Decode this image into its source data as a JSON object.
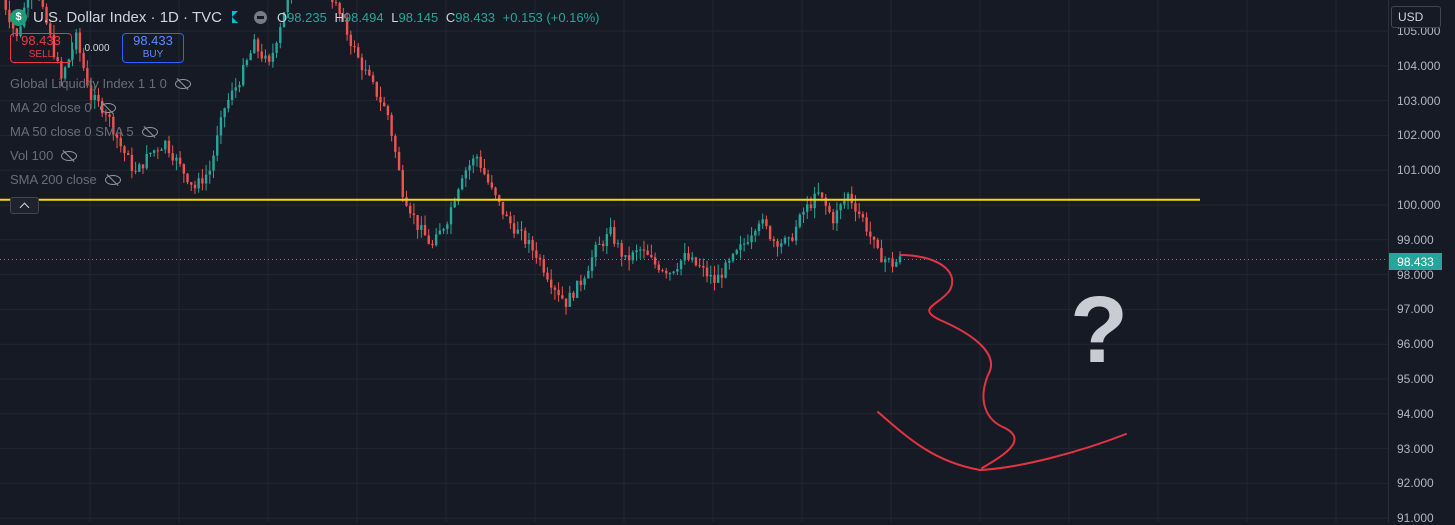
{
  "header": {
    "logo_letter": "$",
    "symbol": "U.S. Dollar Index · 1D · TVC",
    "ohlc": {
      "o_label": "O",
      "o": "98.235",
      "h_label": "H",
      "h": "98.494",
      "l_label": "L",
      "l": "98.145",
      "c_label": "C",
      "c": "98.433",
      "change": "+0.153 (+0.16%)"
    }
  },
  "trade": {
    "sell_price": "98.433",
    "sell_label": "SELL",
    "spread": "0.000",
    "buy_price": "98.433",
    "buy_label": "BUY"
  },
  "indicators": [
    {
      "label": "Global Liquidity Index 1 1 0"
    },
    {
      "label": "MA 20 close 0"
    },
    {
      "label": "MA 50 close 0 SMA 5"
    },
    {
      "label": "Vol 100"
    },
    {
      "label": "SMA 200 close"
    }
  ],
  "price_axis": {
    "currency": "USD",
    "labels": [
      "105.000",
      "104.000",
      "103.000",
      "102.000",
      "101.000",
      "100.000",
      "99.000",
      "98.000",
      "97.000",
      "96.000",
      "95.000",
      "94.000",
      "93.000",
      "92.000",
      "91.000"
    ],
    "last_price": "98.433"
  },
  "annotations": {
    "question_mark": "?",
    "horizontal_line_price": 100.15,
    "line_color": "#f5d90a",
    "drawing_color": "#e23442"
  },
  "colors": {
    "background": "#161a25",
    "up": "#26a69a",
    "down": "#ef5350",
    "grid": "#232632"
  },
  "chart_data": {
    "type": "candlestick",
    "y_range": [
      90.9,
      105.9
    ],
    "path_points": [
      [
        0,
        106.0
      ],
      [
        4,
        104.8
      ],
      [
        8,
        106.5
      ],
      [
        12,
        105.2
      ],
      [
        16,
        103.6
      ],
      [
        20,
        104.8
      ],
      [
        24,
        103.1
      ],
      [
        28,
        102.7
      ],
      [
        32,
        101.7
      ],
      [
        36,
        100.9
      ],
      [
        40,
        101.5
      ],
      [
        44,
        101.8
      ],
      [
        48,
        101.1
      ],
      [
        52,
        100.5
      ],
      [
        56,
        101.0
      ],
      [
        60,
        102.8
      ],
      [
        64,
        103.6
      ],
      [
        68,
        104.6
      ],
      [
        72,
        104.0
      ],
      [
        76,
        105.6
      ],
      [
        80,
        106.5
      ],
      [
        84,
        106.8
      ],
      [
        88,
        106.2
      ],
      [
        92,
        105.2
      ],
      [
        96,
        104.2
      ],
      [
        100,
        103.4
      ],
      [
        104,
        102.6
      ],
      [
        108,
        100.4
      ],
      [
        112,
        99.4
      ],
      [
        116,
        98.8
      ],
      [
        120,
        99.6
      ],
      [
        124,
        100.9
      ],
      [
        128,
        101.4
      ],
      [
        132,
        100.4
      ],
      [
        136,
        99.6
      ],
      [
        140,
        99.1
      ],
      [
        144,
        98.6
      ],
      [
        148,
        97.8
      ],
      [
        152,
        97.2
      ],
      [
        156,
        97.8
      ],
      [
        160,
        98.7
      ],
      [
        164,
        99.2
      ],
      [
        168,
        98.4
      ],
      [
        172,
        98.7
      ],
      [
        176,
        98.3
      ],
      [
        180,
        98.1
      ],
      [
        184,
        98.5
      ],
      [
        188,
        98.2
      ],
      [
        192,
        97.8
      ],
      [
        196,
        98.3
      ],
      [
        200,
        98.9
      ],
      [
        204,
        99.6
      ],
      [
        208,
        99.0
      ],
      [
        212,
        98.9
      ],
      [
        216,
        99.8
      ],
      [
        220,
        100.3
      ],
      [
        224,
        99.6
      ],
      [
        228,
        100.3
      ],
      [
        232,
        99.6
      ],
      [
        236,
        98.6
      ],
      [
        240,
        98.3
      ],
      [
        242,
        98.43
      ]
    ]
  }
}
